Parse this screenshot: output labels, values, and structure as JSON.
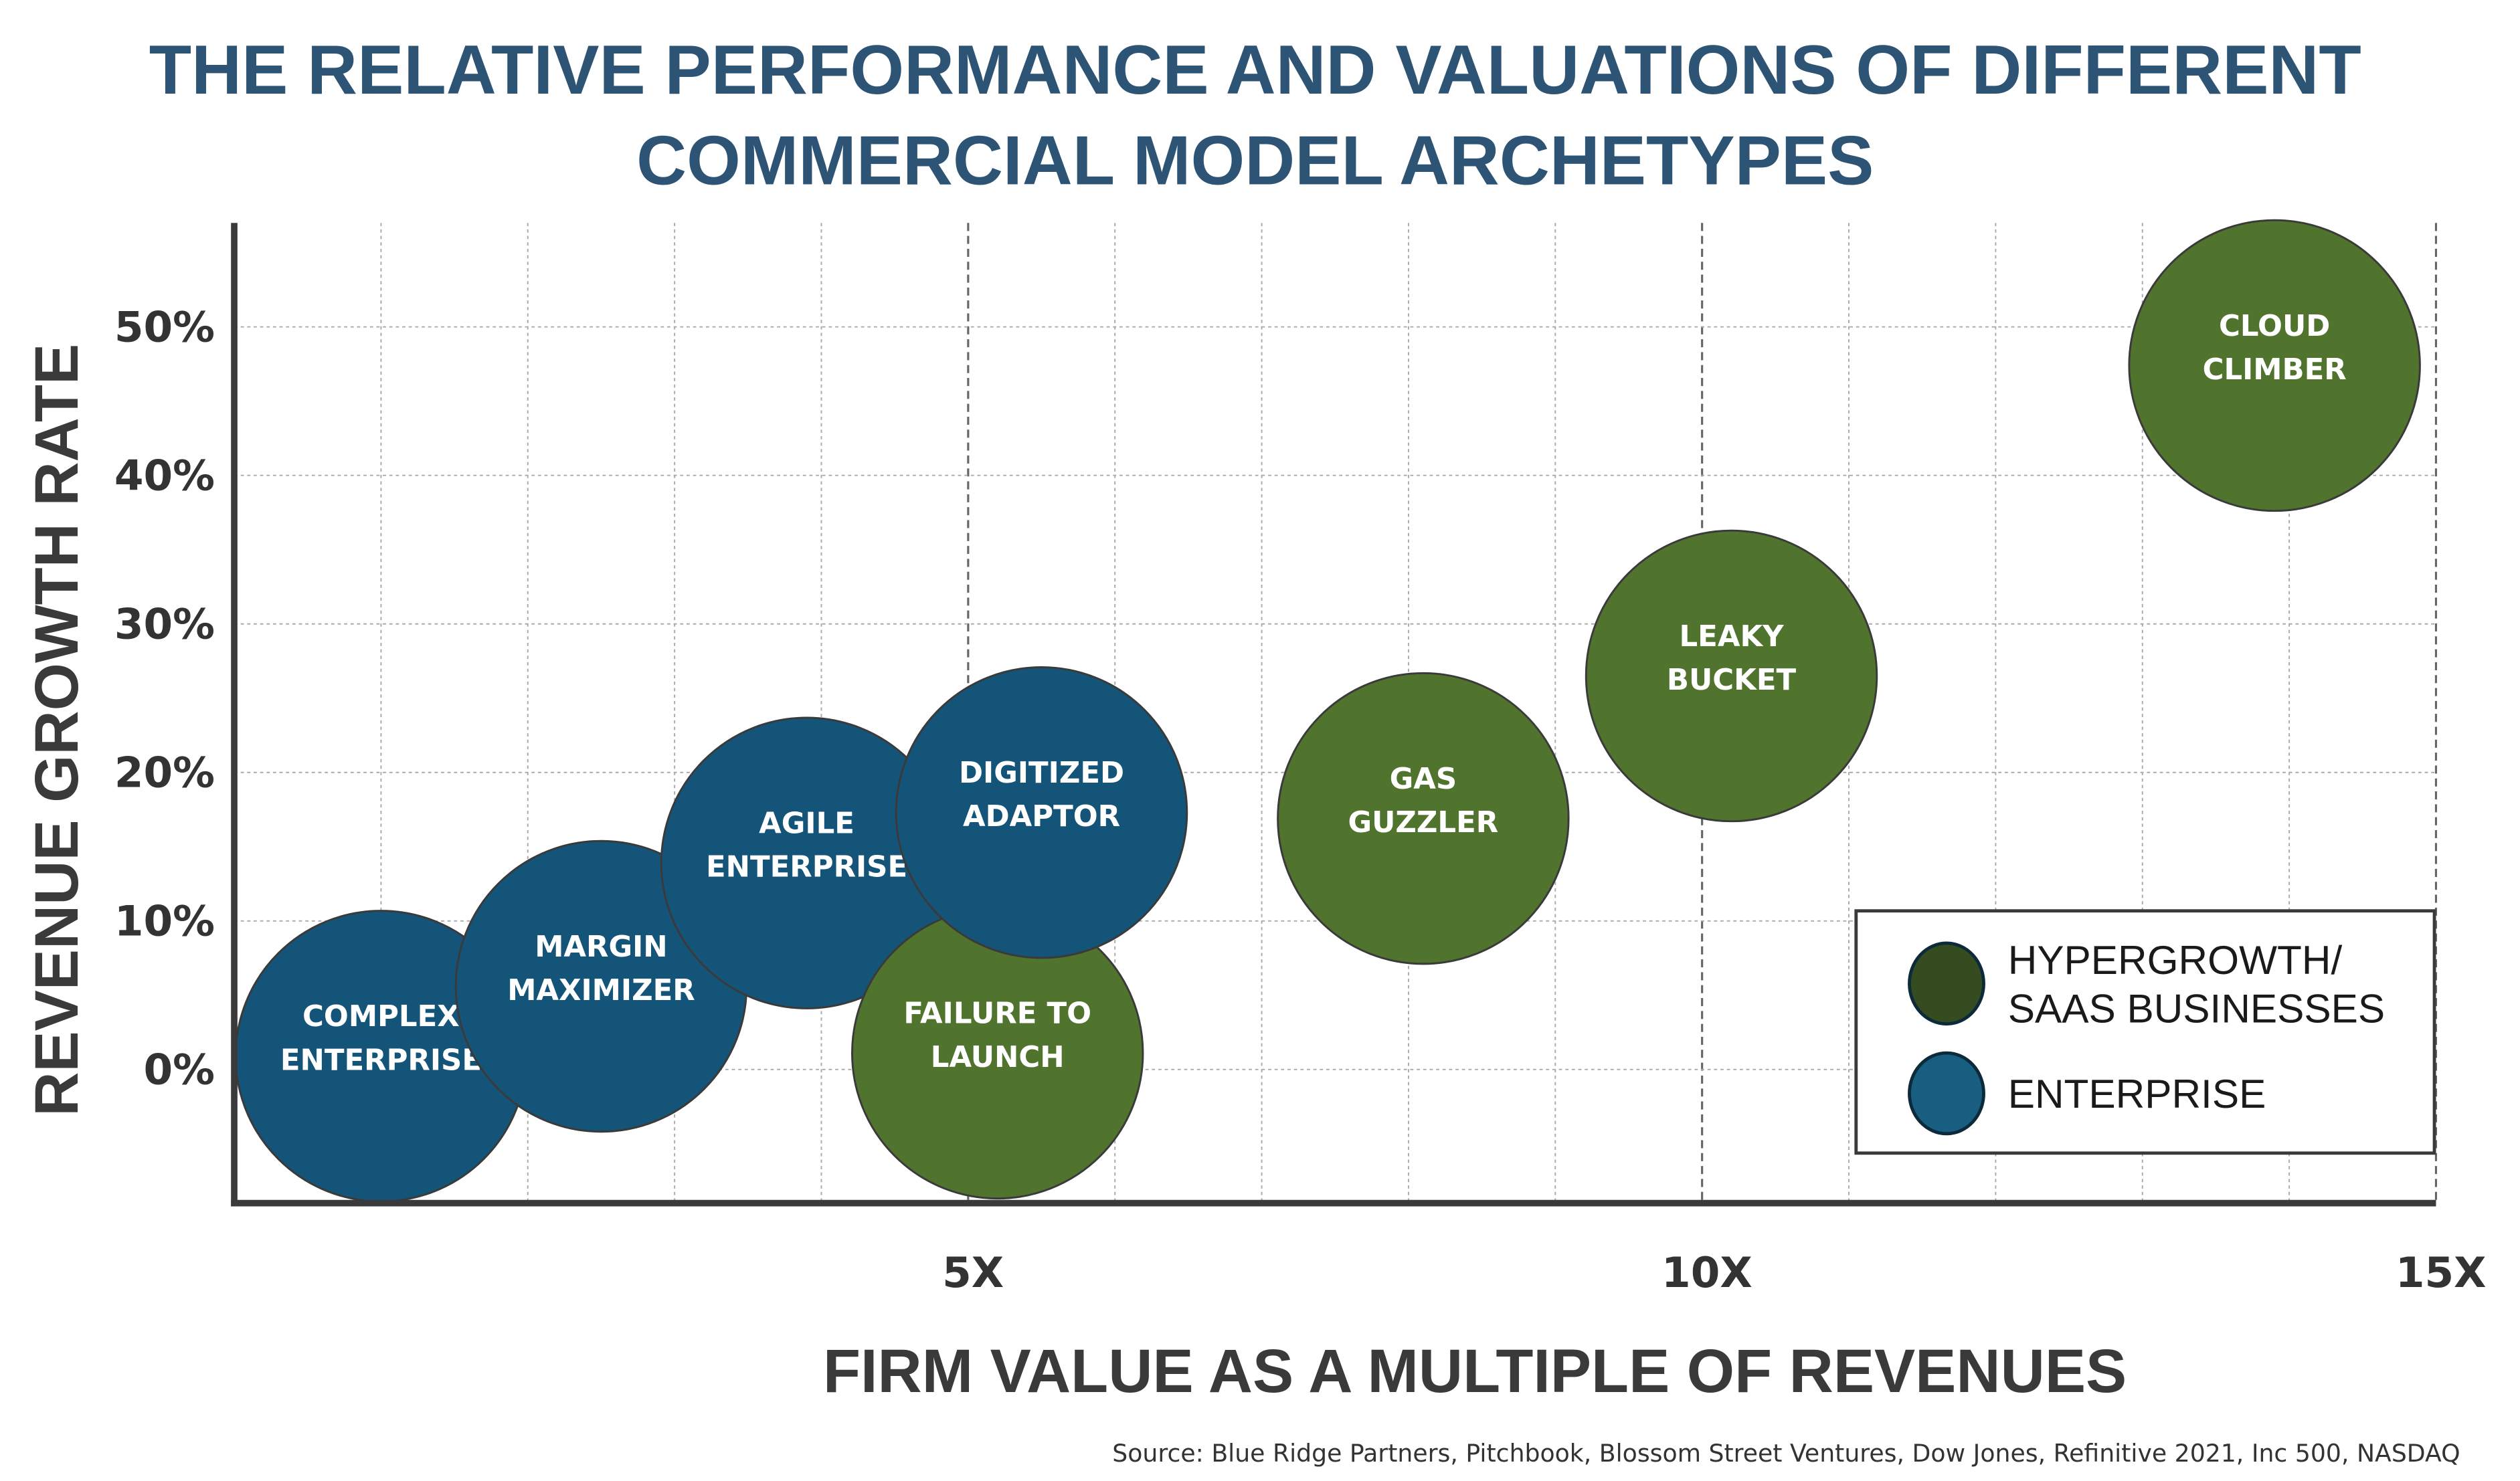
{
  "chart_data": {
    "type": "bubble",
    "title": [
      "THE RELATIVE PERFORMANCE AND VALUATIONS OF DIFFERENT",
      "COMMERCIAL MODEL ARCHETYPES"
    ],
    "xlabel": "FIRM VALUE AS A MULTIPLE OF REVENUES",
    "ylabel": "REVENUE GROWTH RATE",
    "xlim": [
      0,
      15
    ],
    "ylim": [
      -9,
      57
    ],
    "x_ticks": [
      {
        "value": 5,
        "label": "5X"
      },
      {
        "value": 10,
        "label": "10X"
      },
      {
        "value": 15,
        "label": "15X"
      }
    ],
    "y_ticks": [
      {
        "value": 0,
        "label": "0%"
      },
      {
        "value": 10,
        "label": "10%"
      },
      {
        "value": 20,
        "label": "20%"
      },
      {
        "value": 30,
        "label": "30%"
      },
      {
        "value": 40,
        "label": "40%"
      },
      {
        "value": 50,
        "label": "50%"
      }
    ],
    "grid": true,
    "legend_position": "bottom-right",
    "series": [
      {
        "name": "HYPERGROWTH/ SAAS BUSINESSES",
        "legend_lines": [
          "HYPERGROWTH/",
          "SAAS BUSINESSES"
        ],
        "color": "#50732E",
        "legend_color": "#344C20"
      },
      {
        "name": "ENTERPRISE",
        "legend_lines": [
          "ENTERPRISE"
        ],
        "color": "#145478",
        "legend_color": "#175E80"
      }
    ],
    "points": [
      {
        "label": [
          "COMPLEX",
          "ENTERPRISE"
        ],
        "series": "ENTERPRISE",
        "x": 1.0,
        "y": 0.9
      },
      {
        "label": [
          "MARGIN",
          "MAXIMIZER"
        ],
        "series": "ENTERPRISE",
        "x": 2.5,
        "y": 5.6
      },
      {
        "label": [
          "AGILE",
          "ENTERPRISE"
        ],
        "series": "ENTERPRISE",
        "x": 3.9,
        "y": 13.9
      },
      {
        "label": [
          "FAILURE TO",
          "LAUNCH"
        ],
        "series": "HYPERGROWTH/ SAAS BUSINESSES",
        "x": 5.2,
        "y": 1.1
      },
      {
        "label": [
          "DIGITIZED",
          "ADAPTOR"
        ],
        "series": "ENTERPRISE",
        "x": 5.5,
        "y": 17.3
      },
      {
        "label": [
          "GAS",
          "GUZZLER"
        ],
        "series": "HYPERGROWTH/ SAAS BUSINESSES",
        "x": 8.1,
        "y": 16.9
      },
      {
        "label": [
          "LEAKY",
          "BUCKET"
        ],
        "series": "HYPERGROWTH/ SAAS BUSINESSES",
        "x": 10.2,
        "y": 26.5
      },
      {
        "label": [
          "CLOUD",
          "CLIMBER"
        ],
        "series": "HYPERGROWTH/ SAAS BUSINESSES",
        "x": 13.9,
        "y": 47.4
      }
    ],
    "source": "Source: Blue Ridge Partners, Pitchbook, Blossom Street Ventures, Dow Jones, Refinitive 2021, Inc 500, NASDAQ"
  }
}
